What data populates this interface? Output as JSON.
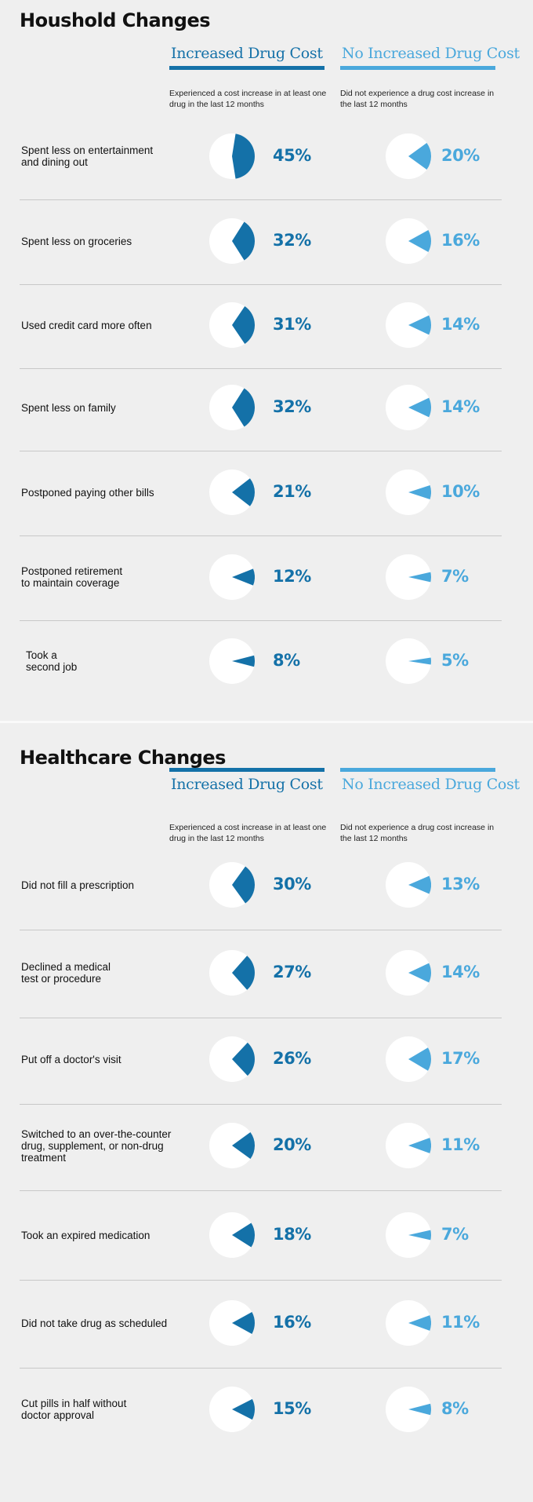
{
  "colors": {
    "increased": "#1471a8",
    "no_increase": "#4aa8dc",
    "pie_bg": "#ffffff"
  },
  "chart_data": [
    {
      "type": "pie",
      "title": "Houshold Changes",
      "columns": [
        {
          "name": "Increased Drug Cost",
          "description": "Experienced a cost increase in at least one drug in the last 12 months"
        },
        {
          "name": "No Increased Drug Cost",
          "description": "Did not experience a drug cost increase in the last 12 months"
        }
      ],
      "categories": [
        "Spent less on entertainment\nand dining out",
        "Spent less on groceries",
        "Used credit card more often",
        "Spent less on family",
        "Postponed paying other bills",
        "Postponed retirement\nto maintain coverage",
        "Took a\nsecond job"
      ],
      "series": [
        {
          "name": "Increased Drug Cost",
          "values": [
            45,
            32,
            31,
            32,
            21,
            12,
            8
          ]
        },
        {
          "name": "No Increased Drug Cost",
          "values": [
            20,
            16,
            14,
            14,
            10,
            7,
            5
          ]
        }
      ],
      "unit": "%"
    },
    {
      "type": "pie",
      "title": "Healthcare Changes",
      "columns": [
        {
          "name": "Increased Drug Cost",
          "description": "Experienced a cost increase in at least one drug in the last 12 months"
        },
        {
          "name": "No Increased Drug Cost",
          "description": "Did not experience a drug cost increase in the last 12 months"
        }
      ],
      "categories": [
        "Did not fill a prescription",
        "Declined a medical\ntest or procedure",
        "Put off a doctor's visit",
        "Switched to an over-the-counter\ndrug, supplement, or non-drug\ntreatment",
        "Took an expired medication",
        "Did not take drug as scheduled",
        "Cut pills in half without\ndoctor approval"
      ],
      "series": [
        {
          "name": "Increased Drug Cost",
          "values": [
            30,
            27,
            26,
            20,
            18,
            16,
            15
          ]
        },
        {
          "name": "No Increased Drug Cost",
          "values": [
            13,
            14,
            17,
            11,
            7,
            11,
            8
          ]
        }
      ],
      "unit": "%"
    }
  ]
}
